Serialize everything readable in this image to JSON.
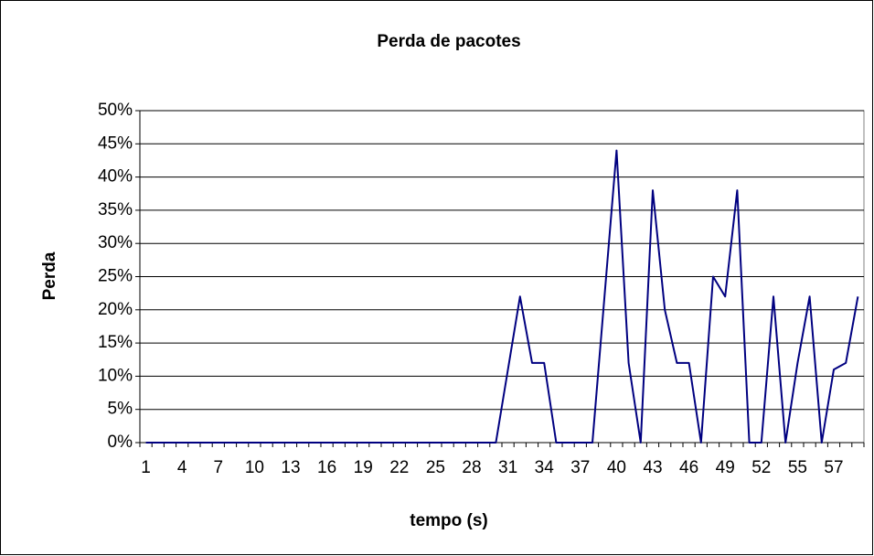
{
  "chart_data": {
    "type": "line",
    "title": "Perda de pacotes",
    "x_label": "tempo (s)",
    "y_label": "Perda",
    "categories": [
      "1",
      null,
      null,
      "4",
      null,
      null,
      "7",
      null,
      null,
      "10",
      null,
      null,
      "13",
      null,
      null,
      "16",
      null,
      null,
      "19",
      null,
      null,
      "22",
      null,
      null,
      "25",
      null,
      null,
      "28",
      null,
      null,
      "31",
      null,
      null,
      "34",
      null,
      null,
      "37",
      null,
      null,
      "40",
      null,
      null,
      "43",
      null,
      null,
      "46",
      null,
      null,
      "49",
      null,
      null,
      "52",
      null,
      null,
      "55",
      null,
      null,
      "57",
      null,
      null
    ],
    "series": [
      {
        "name": "Perda",
        "color": "#000080",
        "values": [
          0,
          0,
          0,
          0,
          0,
          0,
          0,
          0,
          0,
          0,
          0,
          0,
          0,
          0,
          0,
          0,
          0,
          0,
          0,
          0,
          0,
          0,
          0,
          0,
          0,
          0,
          0,
          0,
          0,
          0,
          11,
          22,
          12,
          12,
          0,
          0,
          0,
          0,
          22,
          44,
          12,
          0,
          38,
          20,
          12,
          12,
          0,
          25,
          22,
          38,
          0,
          0,
          22,
          0,
          12,
          22,
          0,
          11,
          12,
          22
        ]
      }
    ],
    "ylim": [
      0,
      50
    ],
    "yticks": [
      {
        "value": 0,
        "label": "0%"
      },
      {
        "value": 5,
        "label": "5%"
      },
      {
        "value": 10,
        "label": "10%"
      },
      {
        "value": 15,
        "label": "15%"
      },
      {
        "value": 20,
        "label": "20%"
      },
      {
        "value": 25,
        "label": "25%"
      },
      {
        "value": 30,
        "label": "30%"
      },
      {
        "value": 35,
        "label": "35%"
      },
      {
        "value": 40,
        "label": "40%"
      },
      {
        "value": 45,
        "label": "45%"
      },
      {
        "value": 50,
        "label": "50%"
      }
    ],
    "grid": true
  }
}
